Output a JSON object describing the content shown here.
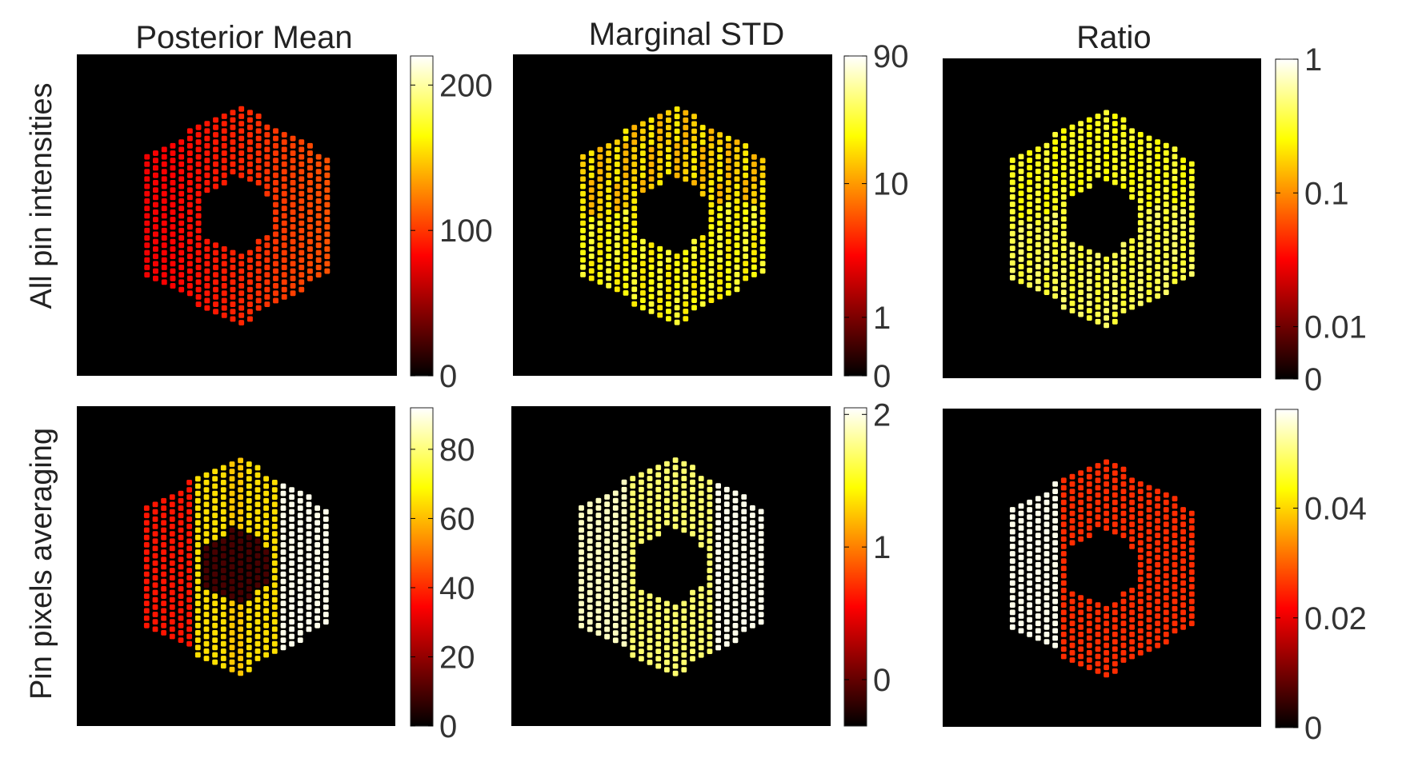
{
  "chart_data": {
    "type": "heatmap",
    "colormap": "hot",
    "column_titles": [
      "Posterior Mean",
      "Marginal STD",
      "Ratio"
    ],
    "row_labels": [
      "All pin intensities",
      "Pin pixels averaging"
    ],
    "panels": [
      {
        "row": 0,
        "col": 0,
        "title": "Posterior Mean",
        "row_label": "All pin intensities",
        "colorbar": {
          "scale": "linear",
          "range": [
            0,
            220
          ],
          "tick_labels": [
            "200",
            "100",
            "0"
          ],
          "tick_values": [
            200,
            100,
            0
          ]
        },
        "pattern": "radial",
        "pin_color_levels": [
          0.35,
          0.5
        ]
      },
      {
        "row": 0,
        "col": 1,
        "title": "Marginal STD",
        "row_label": "All pin intensities",
        "colorbar": {
          "scale": "log",
          "range": [
            0,
            90
          ],
          "tick_labels": [
            "90",
            "10",
            "1",
            "0"
          ],
          "tick_values": [
            90,
            10,
            1,
            0
          ]
        },
        "pattern": "uniform",
        "pin_color_levels": [
          0.72,
          0.8
        ]
      },
      {
        "row": 0,
        "col": 2,
        "title": "Ratio",
        "row_label": "All pin intensities",
        "colorbar": {
          "scale": "log",
          "range": [
            0,
            1
          ],
          "tick_labels": [
            "1",
            "0.1",
            "0.01",
            "0"
          ],
          "tick_values": [
            1,
            0.1,
            0.01,
            0
          ]
        },
        "pattern": "uniform",
        "pin_color_levels": [
          0.8,
          0.85
        ]
      },
      {
        "row": 1,
        "col": 0,
        "title": "Posterior Mean",
        "row_label": "Pin pixels averaging",
        "colorbar": {
          "scale": "linear",
          "range": [
            0,
            92
          ],
          "tick_labels": [
            "80",
            "60",
            "40",
            "20",
            "0"
          ],
          "tick_values": [
            80,
            60,
            40,
            20,
            0
          ]
        },
        "pattern": "bands",
        "band_values": {
          "left": 38,
          "center": 66,
          "right": 92,
          "inner_hole": 10
        }
      },
      {
        "row": 1,
        "col": 1,
        "title": "Marginal STD",
        "row_label": "Pin pixels averaging",
        "colorbar": {
          "scale": "linear",
          "range": [
            -0.35,
            2.05
          ],
          "tick_labels": [
            "2",
            "1",
            "0"
          ],
          "tick_values": [
            2,
            1,
            0
          ]
        },
        "pattern": "bands",
        "band_values": {
          "left": 1.95,
          "center": 1.75,
          "right": 2.05,
          "inner_hole": null
        }
      },
      {
        "row": 1,
        "col": 2,
        "title": "Ratio",
        "row_label": "Pin pixels averaging",
        "colorbar": {
          "scale": "linear",
          "range": [
            0,
            0.058
          ],
          "tick_labels": [
            "0.04",
            "0.02",
            "0"
          ],
          "tick_values": [
            0.04,
            0.02,
            0
          ]
        },
        "pattern": "bands",
        "band_values": {
          "left": 0.058,
          "center": 0.026,
          "right": 0.026,
          "inner_hole": null
        }
      }
    ]
  }
}
